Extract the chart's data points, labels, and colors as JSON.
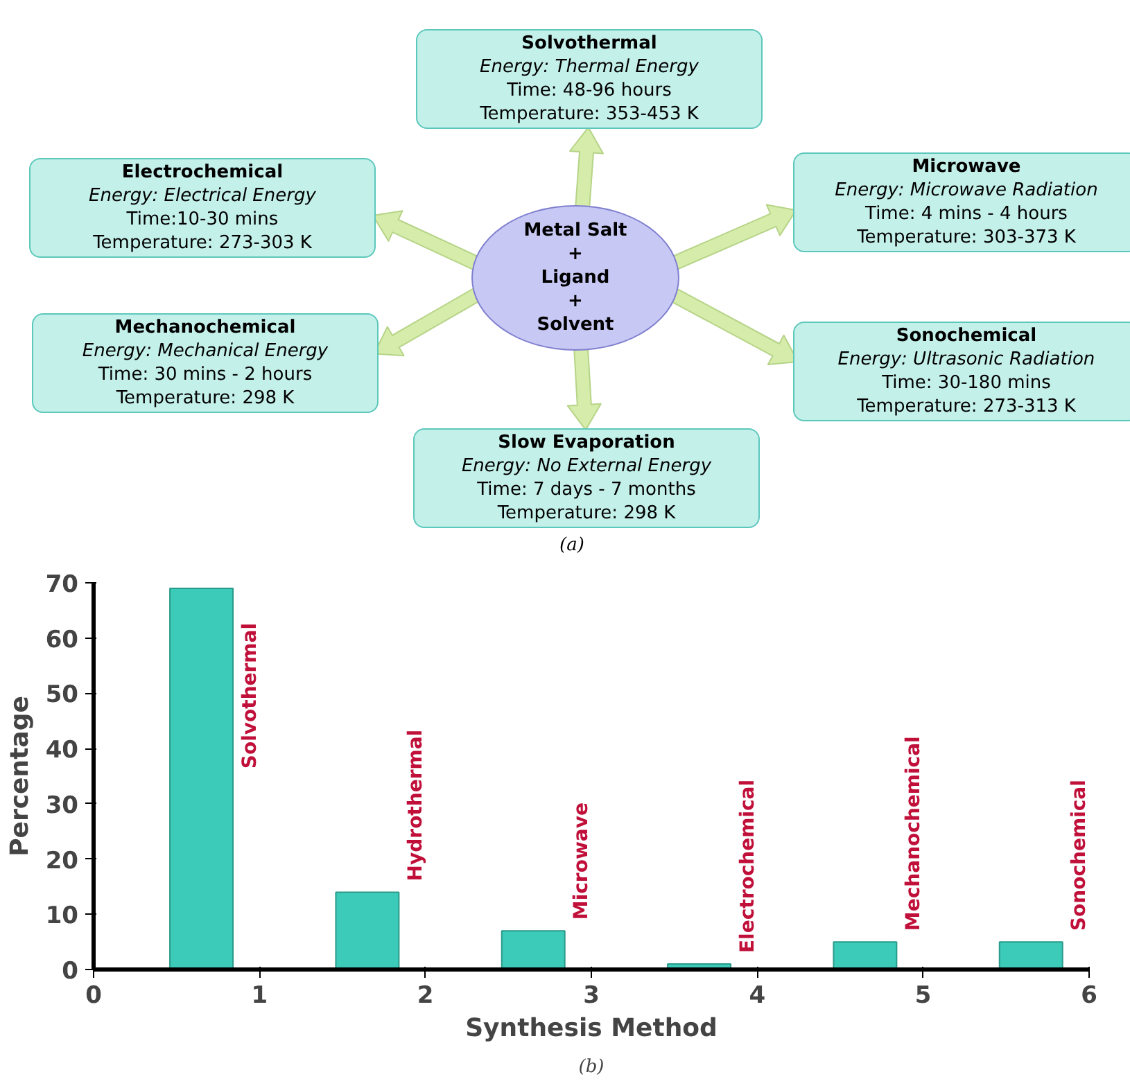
{
  "chart_data": [
    {
      "type": "other",
      "annotations": [
        "Metal Salt",
        "+",
        "Ligand",
        "+",
        "Solvent",
        "Solvothermal",
        "Energy: Thermal Energy",
        "Time: 48-96 hours",
        "Temperature: 353-453 K",
        "Electrochemical",
        "Energy: Electrical Energy",
        "Time:10-30 mins",
        "Temperature: 273-303 K",
        "Microwave",
        "Energy: Microwave Radiation",
        "Time: 4 mins - 4 hours",
        "Temperature: 303-373 K",
        "Mechanochemical",
        "Energy: Mechanical Energy",
        "Time: 30 mins - 2 hours",
        "Temperature: 298 K",
        "Sonochemical",
        "Energy: Ultrasonic Radiation",
        "Time: 30-180 mins",
        "Temperature: 273-313 K",
        "Slow Evaporation",
        "Energy: No External Energy",
        "Time: 7 days - 7 months",
        "Temperature: 298 K",
        "(a)"
      ]
    },
    {
      "type": "bar",
      "xlabel": "Synthesis Method",
      "ylabel": "Percentage",
      "x": [
        0.65,
        1.65,
        2.65,
        3.65,
        4.65,
        5.65
      ],
      "values": [
        69,
        14,
        7,
        1,
        5,
        5
      ],
      "color": "#3ccbb8",
      "xlim": [
        0,
        6
      ],
      "ylim": [
        0,
        70
      ],
      "xticks": [
        0,
        1,
        2,
        3,
        4,
        5,
        6
      ],
      "yticks": [
        0,
        10,
        20,
        30,
        40,
        50,
        60,
        70
      ],
      "grid": false,
      "annotations": [
        {
          "text": "Solvothermal",
          "x": 0.65,
          "y": 69
        },
        {
          "text": "Hydrothermal",
          "x": 1.65,
          "y": 14
        },
        {
          "text": "Microwave",
          "x": 2.65,
          "y": 7
        },
        {
          "text": "Electrochemical",
          "x": 3.65,
          "y": 1
        },
        {
          "text": "Mechanochemical",
          "x": 4.65,
          "y": 5
        },
        {
          "text": "Sonochemical",
          "x": 5.65,
          "y": 5
        },
        "(b)"
      ]
    }
  ]
}
